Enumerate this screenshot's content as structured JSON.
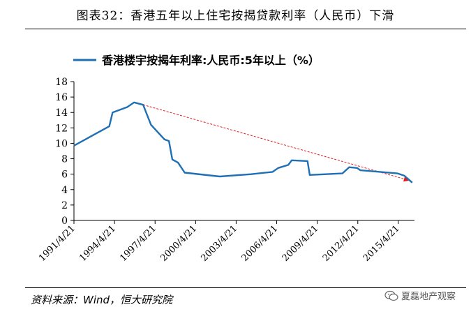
{
  "header": {
    "title": "图表32：香港五年以上住宅按揭贷款利率（人民币）下滑"
  },
  "footer": {
    "source": "资料来源：Wind，恒大研究院",
    "watermark": "夏磊地产观察",
    "watermark_icon": "wechat-icon"
  },
  "chart_data": {
    "type": "line",
    "title": "",
    "xlabel": "",
    "ylabel": "",
    "ylim": [
      0,
      18
    ],
    "y_ticks": [
      0,
      2,
      4,
      6,
      8,
      10,
      12,
      14,
      16,
      18
    ],
    "x_range": [
      "1991-04-21",
      "2016-07-01"
    ],
    "x_tick_labels": [
      "1991/4/21",
      "1994/4/21",
      "1997/4/21",
      "2000/4/21",
      "2003/4/21",
      "2006/4/21",
      "2009/4/21",
      "2012/4/21",
      "2015/4/21"
    ],
    "x_tick_dates": [
      "1991-04-21",
      "1994-04-21",
      "1997-04-21",
      "2000-04-21",
      "2003-04-21",
      "2006-04-21",
      "2009-04-21",
      "2012-04-21",
      "2015-04-21"
    ],
    "grid": false,
    "legend_position": "top",
    "series": [
      {
        "name": "香港楼宇按揭年利率:人民币:5年以上（%）",
        "color": "#1f6fb5",
        "points": [
          [
            "1991-04-21",
            9.7
          ],
          [
            "1993-12-01",
            12.2
          ],
          [
            "1994-03-01",
            14.0
          ],
          [
            "1995-04-01",
            14.7
          ],
          [
            "1995-10-01",
            15.3
          ],
          [
            "1996-06-01",
            15.0
          ],
          [
            "1997-01-01",
            12.4
          ],
          [
            "1998-01-01",
            10.5
          ],
          [
            "1998-05-01",
            10.3
          ],
          [
            "1998-08-01",
            7.9
          ],
          [
            "1999-01-01",
            7.5
          ],
          [
            "1999-07-01",
            6.2
          ],
          [
            "2002-02-01",
            5.7
          ],
          [
            "2004-06-01",
            6.0
          ],
          [
            "2006-01-01",
            6.3
          ],
          [
            "2006-06-01",
            6.8
          ],
          [
            "2007-03-01",
            7.2
          ],
          [
            "2007-06-01",
            7.8
          ],
          [
            "2008-08-01",
            7.7
          ],
          [
            "2008-10-01",
            5.9
          ],
          [
            "2011-03-01",
            6.1
          ],
          [
            "2011-09-01",
            6.9
          ],
          [
            "2012-04-01",
            6.8
          ],
          [
            "2012-07-01",
            6.5
          ],
          [
            "2015-04-01",
            6.1
          ],
          [
            "2015-10-01",
            5.8
          ],
          [
            "2016-05-01",
            4.9
          ]
        ]
      }
    ],
    "trend_line": {
      "color": "#e8191c",
      "style": "dashed-arrow",
      "from": [
        "1996-06-01",
        15.0
      ],
      "to": [
        "2016-02-01",
        5.2
      ]
    }
  }
}
